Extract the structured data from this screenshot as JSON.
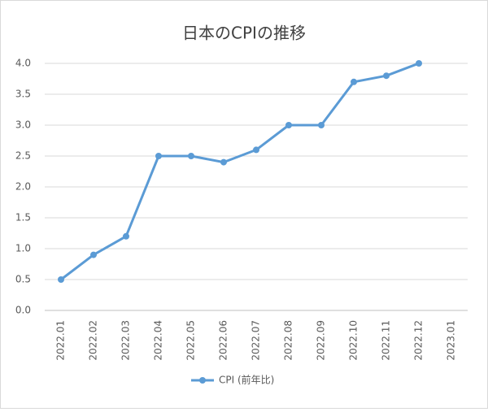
{
  "chart_data": {
    "type": "line",
    "title": "日本のCPIの推移",
    "categories": [
      "2022.01",
      "2022.02",
      "2022.03",
      "2022.04",
      "2022.05",
      "2022.06",
      "2022.07",
      "2022.08",
      "2022.09",
      "2022.10",
      "2022.11",
      "2022.12",
      "2023.01"
    ],
    "series": [
      {
        "name": "CPI (前年比)",
        "color": "#5b9bd5",
        "values": [
          0.5,
          0.9,
          1.2,
          2.5,
          2.5,
          2.4,
          2.6,
          3.0,
          3.0,
          3.7,
          3.8,
          4.0,
          null
        ]
      }
    ],
    "ylim": [
      0,
      4
    ],
    "yticks": [
      {
        "value": 0,
        "label": "0.0"
      },
      0.5,
      {
        "value": 1,
        "label": "1.0"
      },
      1.5,
      {
        "value": 2,
        "label": "2.0"
      },
      2.5,
      {
        "value": 3,
        "label": "3.0"
      },
      3.5,
      {
        "value": 4,
        "label": "4.0"
      }
    ],
    "grid": true,
    "legend": "bottom"
  }
}
